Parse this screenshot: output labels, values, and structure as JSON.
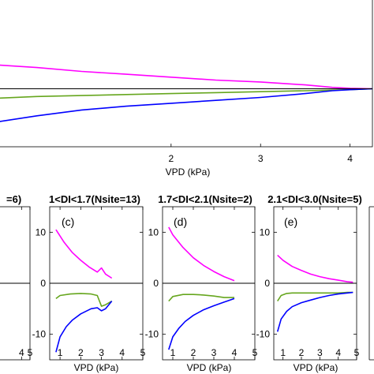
{
  "chart_data": [
    {
      "type": "line",
      "title": "",
      "xlabel": "VPD (kPa)",
      "ylabel": "",
      "xlim": [
        0.0,
        4.25
      ],
      "ylim": [
        -6,
        10
      ],
      "x_ticks": [
        "2",
        "3",
        "4"
      ],
      "grid": false,
      "series": [
        {
          "color": "#ff00ff",
          "x": [
            0.0,
            0.5,
            1.0,
            1.5,
            2.0,
            2.5,
            3.0,
            3.5,
            3.8,
            4.0,
            4.25
          ],
          "y": [
            2.5,
            2.2,
            1.8,
            1.5,
            1.2,
            0.9,
            0.7,
            0.4,
            0.15,
            0.05,
            0.0
          ]
        },
        {
          "color": "#66a61e",
          "x": [
            0.0,
            0.5,
            1.0,
            1.5,
            2.0,
            2.5,
            3.0,
            3.5,
            4.0,
            4.25
          ],
          "y": [
            -1.0,
            -0.8,
            -0.7,
            -0.6,
            -0.5,
            -0.4,
            -0.3,
            -0.2,
            -0.1,
            0.0
          ]
        },
        {
          "color": "#0000ff",
          "x": [
            0.0,
            0.5,
            1.0,
            1.5,
            2.0,
            2.5,
            3.0,
            3.5,
            3.8,
            4.0,
            4.25
          ],
          "y": [
            -3.5,
            -2.8,
            -2.2,
            -1.8,
            -1.5,
            -1.2,
            -0.9,
            -0.5,
            -0.2,
            -0.1,
            0.0
          ]
        },
        {
          "color": "#000000",
          "x": [
            0.0,
            4.25
          ],
          "y": [
            0,
            0
          ]
        }
      ]
    },
    {
      "type": "line",
      "title": "=6)",
      "xlabel": "",
      "xlim": [
        0.5,
        5
      ],
      "ylim": [
        -15,
        15
      ],
      "x_ticks": [
        "4",
        "5"
      ],
      "series": [
        {
          "color": "#000000",
          "x": [
            0.5,
            5
          ],
          "y": [
            0,
            0
          ]
        }
      ]
    },
    {
      "type": "line",
      "title": "1<DI<1.7(Nsite=13)",
      "panel_label": "(c)",
      "xlabel": "VPD (kPa)",
      "xlim": [
        0.5,
        5
      ],
      "ylim": [
        -15,
        15
      ],
      "x_ticks": [
        "1",
        "2",
        "3",
        "4",
        "5"
      ],
      "y_ticks": [
        "10",
        "0",
        "-10"
      ],
      "series": [
        {
          "color": "#ff00ff",
          "x": [
            0.8,
            1.2,
            1.6,
            2.0,
            2.4,
            2.8,
            3.0,
            3.2,
            3.5
          ],
          "y": [
            10.5,
            8.0,
            6.0,
            4.5,
            3.2,
            2.2,
            3.0,
            1.8,
            1.0
          ]
        },
        {
          "color": "#66a61e",
          "x": [
            0.8,
            1.0,
            1.5,
            2.0,
            2.5,
            2.8,
            3.0,
            3.2,
            3.5
          ],
          "y": [
            -3.0,
            -2.4,
            -2.1,
            -2.0,
            -2.1,
            -2.4,
            -4.5,
            -4.2,
            -3.5
          ]
        },
        {
          "color": "#0000ff",
          "x": [
            0.8,
            1.0,
            1.3,
            1.6,
            2.0,
            2.5,
            2.8,
            3.0,
            3.2,
            3.5
          ],
          "y": [
            -13.5,
            -10.5,
            -8.5,
            -7.2,
            -6.0,
            -5.0,
            -4.8,
            -5.4,
            -5.0,
            -3.5
          ]
        },
        {
          "color": "#000000",
          "x": [
            0.5,
            5
          ],
          "y": [
            0,
            0
          ]
        }
      ]
    },
    {
      "type": "line",
      "title": "1.7<DI<2.1(Nsite=2)",
      "panel_label": "(d)",
      "xlabel": "VPD (kPa)",
      "xlim": [
        0.5,
        5
      ],
      "ylim": [
        -15,
        15
      ],
      "x_ticks": [
        "1",
        "2",
        "3",
        "4",
        "5"
      ],
      "y_ticks": [
        "10",
        "0",
        "-10"
      ],
      "series": [
        {
          "color": "#ff00ff",
          "x": [
            0.8,
            1.0,
            1.5,
            2.0,
            2.5,
            3.0,
            3.5,
            4.0
          ],
          "y": [
            11.0,
            9.5,
            7.0,
            5.0,
            3.5,
            2.3,
            1.3,
            0.5
          ]
        },
        {
          "color": "#66a61e",
          "x": [
            0.8,
            1.0,
            1.5,
            2.0,
            2.5,
            3.0,
            3.5,
            4.0
          ],
          "y": [
            -3.5,
            -2.6,
            -2.2,
            -2.2,
            -2.3,
            -2.5,
            -2.8,
            -2.8
          ]
        },
        {
          "color": "#0000ff",
          "x": [
            0.8,
            1.0,
            1.3,
            1.6,
            2.0,
            2.5,
            3.0,
            3.5,
            4.0
          ],
          "y": [
            -13.0,
            -10.5,
            -8.8,
            -7.5,
            -6.3,
            -5.2,
            -4.4,
            -3.7,
            -3.0
          ]
        },
        {
          "color": "#000000",
          "x": [
            0.5,
            5
          ],
          "y": [
            0,
            0
          ]
        }
      ]
    },
    {
      "type": "line",
      "title": "2.1<DI<3.0(Nsite=5)",
      "panel_label": "(e)",
      "xlabel": "VPD (kPa)",
      "xlim": [
        0.5,
        5
      ],
      "ylim": [
        -15,
        15
      ],
      "x_ticks": [
        "1",
        "2",
        "3",
        "4",
        "5"
      ],
      "y_ticks": [
        "10",
        "0",
        "-10"
      ],
      "series": [
        {
          "color": "#ff00ff",
          "x": [
            0.7,
            1.0,
            1.5,
            2.0,
            2.5,
            3.0,
            3.5,
            4.0,
            4.5,
            4.8
          ],
          "y": [
            5.5,
            4.5,
            3.3,
            2.5,
            1.8,
            1.3,
            0.9,
            0.6,
            0.3,
            0.2
          ]
        },
        {
          "color": "#66a61e",
          "x": [
            0.7,
            0.9,
            1.2,
            1.5,
            2.0,
            2.5,
            3.0,
            3.5,
            4.0,
            4.5,
            4.8
          ],
          "y": [
            -3.5,
            -2.4,
            -2.0,
            -1.9,
            -1.9,
            -1.9,
            -1.9,
            -1.9,
            -1.9,
            -1.8,
            -1.8
          ]
        },
        {
          "color": "#0000ff",
          "x": [
            0.7,
            0.9,
            1.2,
            1.5,
            2.0,
            2.5,
            3.0,
            3.5,
            4.0,
            4.5,
            4.8
          ],
          "y": [
            -9.5,
            -7.0,
            -5.5,
            -4.6,
            -3.8,
            -3.3,
            -2.8,
            -2.4,
            -2.1,
            -1.9,
            -1.8
          ]
        },
        {
          "color": "#000000",
          "x": [
            0.5,
            5
          ],
          "y": [
            0,
            0
          ]
        }
      ]
    }
  ]
}
